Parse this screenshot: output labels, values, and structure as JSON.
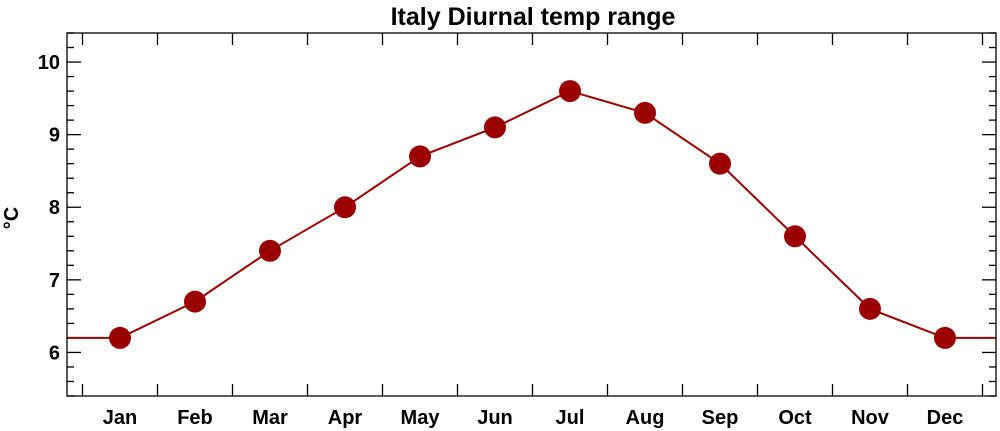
{
  "chart_data": {
    "type": "line",
    "title": "Italy Diurnal temp range",
    "xlabel": "",
    "ylabel": "°C",
    "categories": [
      "Jan",
      "Feb",
      "Mar",
      "Apr",
      "May",
      "Jun",
      "Jul",
      "Aug",
      "Sep",
      "Oct",
      "Nov",
      "Dec"
    ],
    "series": [
      {
        "values": [
          6.2,
          6.7,
          7.4,
          8.0,
          8.7,
          9.1,
          9.6,
          9.3,
          8.6,
          7.6,
          6.6,
          6.2
        ],
        "color": "#9b0000"
      }
    ],
    "ylim": [
      5.4,
      10.4
    ],
    "yticks": [
      6,
      7,
      8,
      9,
      10
    ],
    "grid": false,
    "legend": "none"
  }
}
